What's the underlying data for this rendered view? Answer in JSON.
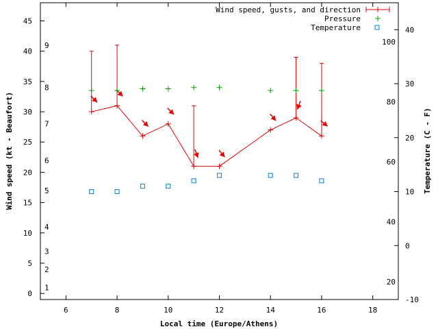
{
  "chart_data": {
    "type": "line",
    "title": "",
    "xlabel": "Local time (Europe/Athens)",
    "ylabel": "Wind speed (kt - Beaufort)",
    "y2label": "Temperature (C - F)",
    "xlim": [
      5,
      19
    ],
    "ylim": [
      -1,
      48
    ],
    "y2lim": [
      -10,
      45
    ],
    "x_ticks": [
      6,
      8,
      10,
      12,
      14,
      16,
      18
    ],
    "y_ticks": [
      0,
      5,
      10,
      15,
      20,
      25,
      30,
      35,
      40,
      45
    ],
    "y2_ticks": [
      -10,
      0,
      10,
      20,
      30,
      40
    ],
    "beaufort_ticks": [
      {
        "label": "1",
        "kt": 1
      },
      {
        "label": "2",
        "kt": 4
      },
      {
        "label": "3",
        "kt": 7
      },
      {
        "label": "4",
        "kt": 11
      },
      {
        "label": "5",
        "kt": 17
      },
      {
        "label": "6",
        "kt": 22
      },
      {
        "label": "7",
        "kt": 28
      },
      {
        "label": "8",
        "kt": 34
      },
      {
        "label": "9",
        "kt": 41
      }
    ],
    "fahrenheit_ticks": [
      20,
      40,
      60,
      80,
      100
    ],
    "legend_position": "top-right",
    "series": [
      {
        "name": "Wind speed, gusts, and direction",
        "color": "#e00000",
        "x": [
          7,
          8,
          9,
          10,
          11,
          12,
          14,
          15,
          16
        ],
        "values": [
          30,
          31,
          26,
          28,
          21,
          21,
          27,
          29,
          26
        ],
        "gusts": [
          40,
          41,
          null,
          null,
          31,
          null,
          null,
          39,
          38
        ],
        "direction_deg": [
          315,
          315,
          315,
          315,
          340,
          320,
          320,
          20,
          310
        ]
      },
      {
        "name": "Pressure",
        "color": "#00a000",
        "x": [
          7,
          8,
          9,
          10,
          11,
          12,
          14,
          15,
          16
        ],
        "values": [
          33.5,
          33.5,
          33.8,
          33.8,
          34,
          34,
          33.5,
          33.5,
          33.5
        ]
      },
      {
        "name": "Temperature",
        "color": "#0080d0",
        "x": [
          7,
          8,
          9,
          10,
          11,
          12,
          14,
          15,
          16
        ],
        "values": [
          10,
          10,
          11,
          11,
          12,
          13,
          13,
          13,
          12
        ]
      }
    ]
  }
}
